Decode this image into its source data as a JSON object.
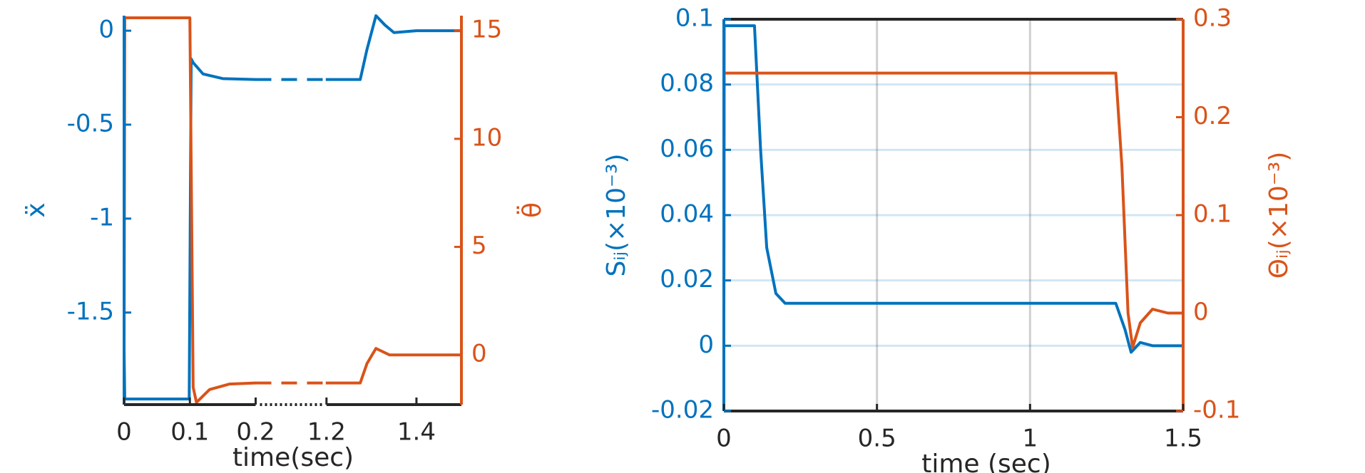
{
  "chart_data": [
    {
      "type": "line",
      "xlabel": "time(sec)",
      "ylabel": "ẍ",
      "y2label": "θ̈",
      "xlim": [
        0,
        1.5
      ],
      "x_break": [
        0.2,
        1.2
      ],
      "xticks": [
        0,
        0.1,
        0.2,
        1.2,
        1.4
      ],
      "ylim": [
        -1.99,
        0.08
      ],
      "yticks": [
        -1.5,
        -1,
        -0.5,
        0
      ],
      "y2lim": [
        -2.3,
        15.7
      ],
      "y2ticks": [
        0,
        5,
        10,
        15
      ],
      "box": false,
      "xgrid": false,
      "ygrid": false,
      "series": [
        {
          "color": "#0072bd",
          "axis": "y",
          "x": [
            0,
            0.001,
            0.099,
            0.102,
            0.105,
            0.12,
            0.15,
            0.2,
            1.2,
            1.275,
            1.29,
            1.31,
            1.33,
            1.35,
            1.4,
            1.5
          ],
          "values": [
            -1.7,
            -1.96,
            -1.96,
            -0.15,
            -0.17,
            -0.23,
            -0.255,
            -0.26,
            -0.26,
            -0.26,
            -0.1,
            0.08,
            0.03,
            -0.01,
            0,
            0
          ]
        },
        {
          "color": "#d95319",
          "axis": "y2",
          "x": [
            0,
            0.001,
            0.1,
            0.105,
            0.11,
            0.13,
            0.16,
            0.2,
            1.2,
            1.275,
            1.29,
            1.31,
            1.34,
            1.4,
            1.5
          ],
          "values": [
            0.3,
            15.6,
            15.6,
            -1.5,
            -2.2,
            -1.6,
            -1.35,
            -1.3,
            -1.3,
            -1.3,
            -0.4,
            0.3,
            0,
            0,
            0
          ]
        }
      ]
    },
    {
      "type": "line",
      "xlabel": "time (sec)",
      "ylabel": "Sᵢⱼ(×10⁻³)",
      "y2label": "Θᵢⱼ(×10⁻³)",
      "xlim": [
        0,
        1.5
      ],
      "xticks": [
        0,
        0.5,
        1,
        1.5
      ],
      "ylim": [
        -0.02,
        0.1
      ],
      "yticks": [
        -0.02,
        0,
        0.02,
        0.04,
        0.06,
        0.08,
        0.1
      ],
      "y2lim": [
        -0.1,
        0.3
      ],
      "y2ticks": [
        -0.1,
        0,
        0.1,
        0.2,
        0.3
      ],
      "box": true,
      "xgrid": true,
      "ygrid": true,
      "series": [
        {
          "color": "#0072bd",
          "axis": "y",
          "x": [
            0,
            0.001,
            0.1,
            0.12,
            0.14,
            0.17,
            0.2,
            1.28,
            1.31,
            1.33,
            1.36,
            1.4,
            1.5
          ],
          "values": [
            0.01,
            0.098,
            0.098,
            0.06,
            0.03,
            0.016,
            0.013,
            0.013,
            0.005,
            -0.002,
            0.001,
            0,
            0
          ]
        },
        {
          "color": "#d95319",
          "axis": "y2",
          "x": [
            0,
            0.001,
            1.28,
            1.3,
            1.32,
            1.335,
            1.36,
            1.4,
            1.45,
            1.5
          ],
          "values": [
            0,
            0.245,
            0.245,
            0.15,
            0,
            -0.035,
            -0.01,
            0.004,
            0,
            0
          ]
        }
      ]
    }
  ]
}
